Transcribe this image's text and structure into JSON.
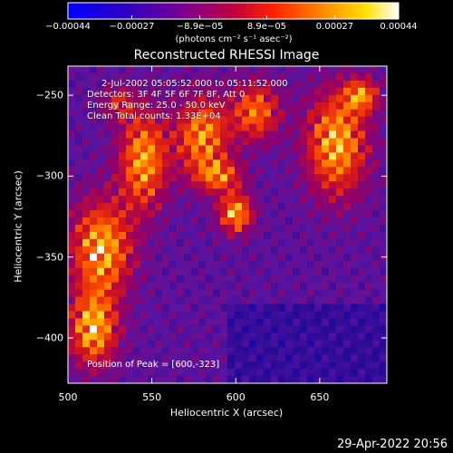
{
  "chart_data": {
    "type": "heatmap",
    "title": "Reconstructed RHESSI Image",
    "xlabel": "Heliocentric X (arcsec)",
    "ylabel": "Heliocentric Y (arcsec)",
    "xlim": [
      500,
      690
    ],
    "ylim": [
      -428,
      -232
    ],
    "x_ticks": [
      500,
      550,
      600,
      650
    ],
    "x_tick_labels": [
      "500",
      "550",
      "600",
      "650"
    ],
    "y_ticks": [
      -250,
      -300,
      -350,
      -400
    ],
    "y_tick_labels": [
      "−250",
      "−300",
      "−350",
      "−400"
    ],
    "colorbar": {
      "range": [
        -0.00044,
        0.00044
      ],
      "tick_values": [
        -0.00044,
        -0.00027,
        -8.9e-05,
        8.9e-05,
        0.00027,
        0.00044
      ],
      "tick_labels": [
        "−0.00044",
        "−0.00027",
        "−8.9e−05",
        "8.9e−05",
        "0.00027",
        "0.00044"
      ],
      "unit": "(photons cm⁻² s⁻¹ asec⁻²)",
      "colors": [
        "#0000ff",
        "#5a00a0",
        "#9a0080",
        "#d81010",
        "#ff7800",
        "#ffd000",
        "#ffffff"
      ]
    },
    "annotations": [
      "2-Jul-2002 05:05:52.000 to 05:11:52.000",
      "Detectors: 3F 4F 5F 6F 7F 8F, Att 0",
      "Energy Range: 25.0 - 50.0 keV",
      "Clean     Total counts: 1.33E+04"
    ],
    "peak_note": "Position of Peak = [600,-323]",
    "peak": [
      600,
      -323
    ],
    "grid": false
  },
  "footer": {
    "timestamp": "29-Apr-2022 20:56"
  }
}
